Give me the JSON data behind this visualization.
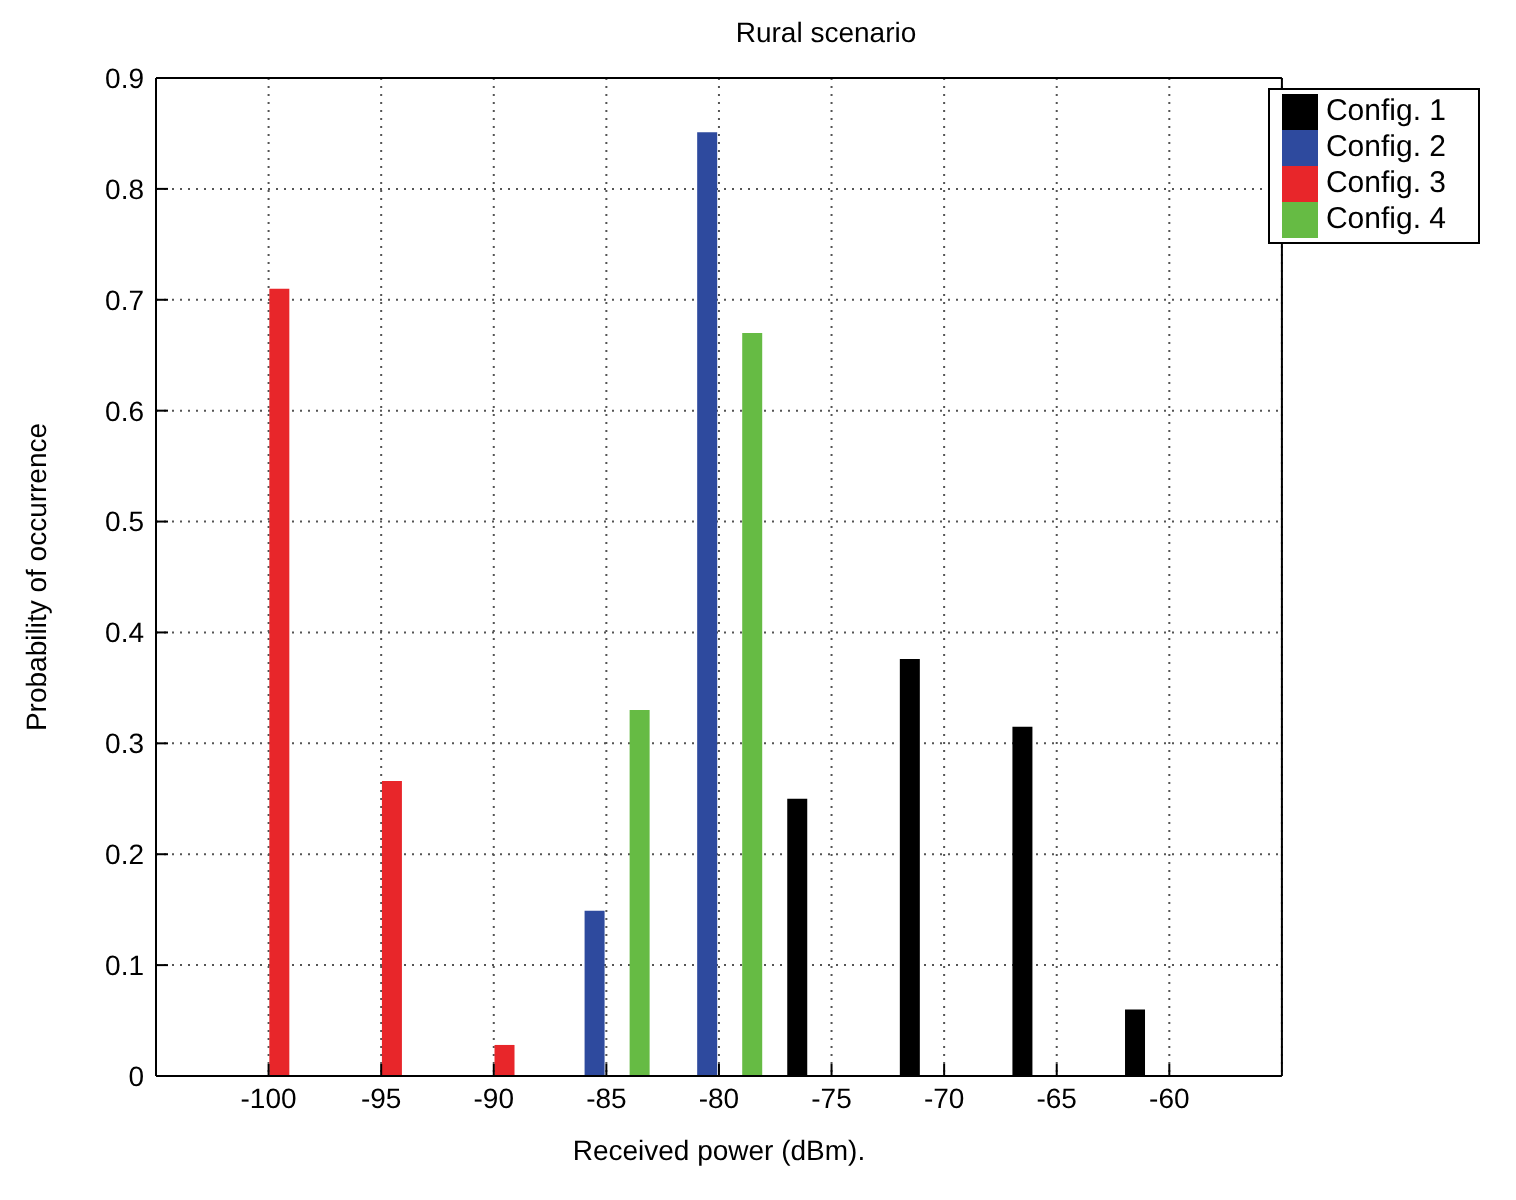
{
  "chart_data": {
    "type": "bar",
    "title": "Rural scenario",
    "xlabel": "Received power (dBm).",
    "ylabel": "Probability of occurrence",
    "xlim": [
      -105,
      -55
    ],
    "xticks": [
      -100,
      -95,
      -90,
      -85,
      -80,
      -75,
      -70,
      -65,
      -60
    ],
    "ylim": [
      0,
      0.9
    ],
    "yticks": [
      0,
      0.1,
      0.2,
      0.3,
      0.4,
      0.5,
      0.6,
      0.7,
      0.8,
      0.9
    ],
    "grid": true,
    "legend": "top right",
    "series": [
      {
        "name": "Config. 1",
        "color": "#000000",
        "x": [
          -76.5,
          -71.5,
          -66.5,
          -61.5
        ],
        "values": [
          0.25,
          0.376,
          0.315,
          0.06
        ]
      },
      {
        "name": "Config. 2",
        "color": "#2e4a9e",
        "x": [
          -85.5,
          -80.5
        ],
        "values": [
          0.149,
          0.851
        ]
      },
      {
        "name": "Config. 3",
        "color": "#e8262a",
        "x": [
          -99.5,
          -94.5,
          -89.5
        ],
        "values": [
          0.71,
          0.266,
          0.028
        ]
      },
      {
        "name": "Config. 4",
        "color": "#66bb44",
        "x": [
          -83.5,
          -78.5
        ],
        "values": [
          0.33,
          0.67
        ]
      }
    ]
  }
}
